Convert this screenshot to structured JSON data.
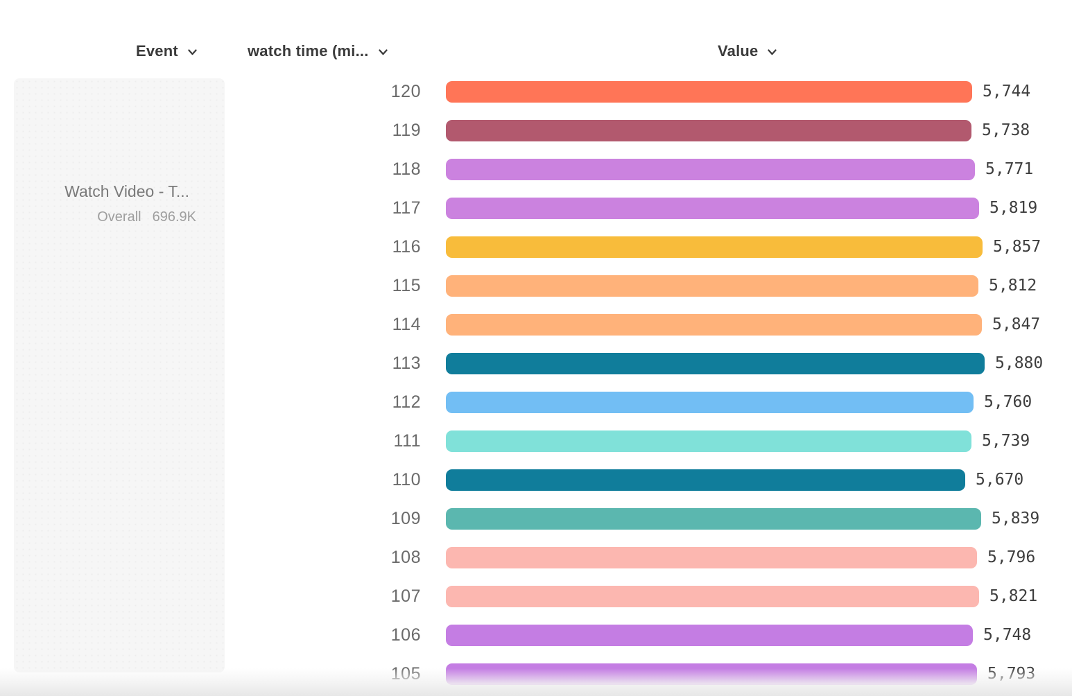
{
  "header": {
    "columns": [
      {
        "id": "event",
        "label": "Event"
      },
      {
        "id": "watch-time",
        "label": "watch time (mi..."
      },
      {
        "id": "value",
        "label": "Value"
      }
    ]
  },
  "legend": {
    "event_name": "Watch Video - T...",
    "overall_label": "Overall",
    "overall_value": "696.9K"
  },
  "icons": {
    "chevron_down": "chevron-down-icon"
  },
  "colors": {
    "header_text": "#3b3b3b",
    "category_label": "#6b6b6b",
    "value_label": "#3e3e3e",
    "panel_bg": "#f6f6f6",
    "event_name_text": "#7a7a7a",
    "overall_text": "#9e9e9e"
  },
  "chart_data": {
    "type": "bar",
    "orientation": "horizontal",
    "title": "",
    "xlabel": "Value",
    "ylabel": "watch time (mi...",
    "xlim": [
      0,
      5880
    ],
    "grid": false,
    "categories": [
      "120",
      "119",
      "118",
      "117",
      "116",
      "115",
      "114",
      "113",
      "112",
      "111",
      "110",
      "109",
      "108",
      "107",
      "106",
      "105"
    ],
    "values": [
      5744,
      5738,
      5771,
      5819,
      5857,
      5812,
      5847,
      5880,
      5760,
      5739,
      5670,
      5839,
      5796,
      5821,
      5748,
      5793
    ],
    "value_labels": [
      "5,744",
      "5,738",
      "5,771",
      "5,819",
      "5,857",
      "5,812",
      "5,847",
      "5,880",
      "5,760",
      "5,739",
      "5,670",
      "5,839",
      "5,796",
      "5,821",
      "5,748",
      "5,793"
    ],
    "bar_colors": [
      "#FF7557",
      "#B2596E",
      "#CB82DF",
      "#CB82DF",
      "#F8BC3B",
      "#FFB27A",
      "#FFB27A",
      "#107D9B",
      "#72BEF4",
      "#80E1D9",
      "#107D9B",
      "#5BB7AF",
      "#FCB7B0",
      "#FCB7B0",
      "#C47DE3",
      "#C47DE3"
    ],
    "series": [
      {
        "name": "Watch Video - T...",
        "overall": "696.9K"
      }
    ]
  }
}
